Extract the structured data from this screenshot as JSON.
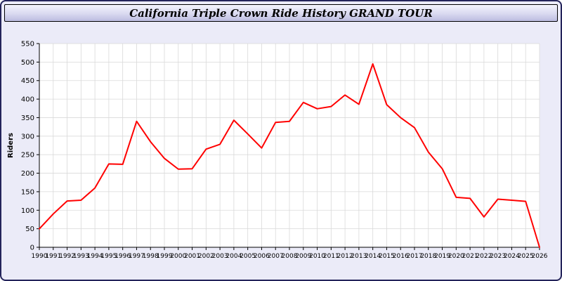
{
  "header": {
    "title": "California Triple Crown Ride History GRAND TOUR"
  },
  "chart_data": {
    "type": "line",
    "title": "California Triple Crown Ride History GRAND TOUR",
    "xlabel": "",
    "ylabel": "Riders",
    "ylim": [
      0,
      550
    ],
    "yticks": [
      0,
      50,
      100,
      150,
      200,
      250,
      300,
      350,
      400,
      450,
      500,
      550
    ],
    "grid": true,
    "legend": "none",
    "line_color": "#ff0000",
    "grid_color": "#d9d9d9",
    "plot_bg": "#ffffff",
    "page_bg": "#ebebf8",
    "x": [
      1990,
      1991,
      1992,
      1993,
      1994,
      1995,
      1996,
      1997,
      1998,
      1999,
      2000,
      2001,
      2002,
      2003,
      2004,
      2005,
      2006,
      2007,
      2008,
      2009,
      2010,
      2011,
      2012,
      2013,
      2014,
      2015,
      2016,
      2017,
      2018,
      2019,
      2020,
      2021,
      2022,
      2023,
      2024,
      2025,
      2026
    ],
    "values": [
      50,
      90,
      125,
      127,
      160,
      225,
      224,
      340,
      285,
      240,
      211,
      212,
      265,
      278,
      343,
      306,
      268,
      337,
      340,
      391,
      374,
      380,
      411,
      386,
      495,
      385,
      350,
      323,
      257,
      212,
      135,
      132,
      82,
      130,
      127,
      124,
      0
    ]
  }
}
